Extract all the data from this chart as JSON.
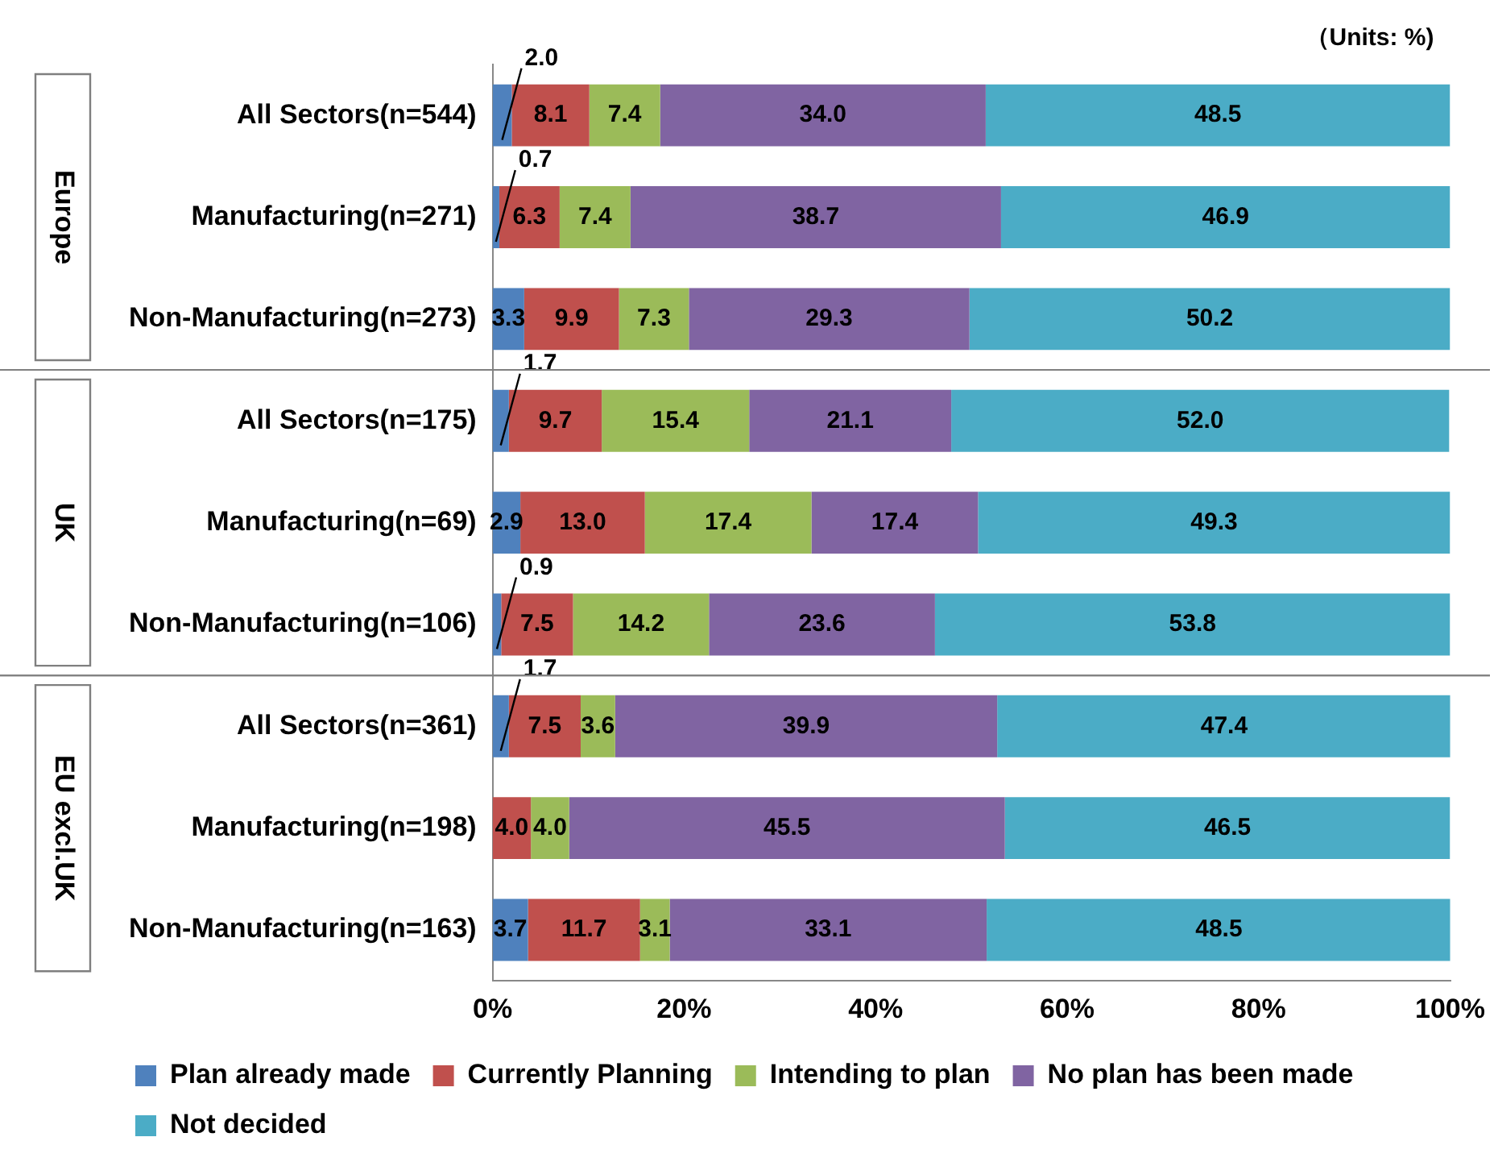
{
  "chart_data": {
    "type": "bar",
    "orientation": "horizontal",
    "stacked": true,
    "categories": [
      "All Sectors(n=544)",
      "Manufacturing(n=271)",
      "Non-Manufacturing(n=273)",
      "All Sectors(n=175)",
      "Manufacturing(n=69)",
      "Non-Manufacturing(n=106)",
      "All Sectors(n=361)",
      "Manufacturing(n=198)",
      "Non-Manufacturing(n=163)"
    ],
    "series": [
      {
        "name": "Plan already made",
        "color": "#4f81bd",
        "values": [
          2.0,
          0.7,
          3.3,
          1.7,
          2.9,
          0.9,
          1.7,
          0,
          3.7
        ],
        "value_labels": [
          "2.0",
          "0.7",
          "3.3",
          "1.7",
          "2.9",
          "0.9",
          "1.7",
          null,
          "3.7"
        ]
      },
      {
        "name": "Currently Planning",
        "color": "#c0504d",
        "values": [
          8.1,
          6.3,
          9.9,
          9.7,
          13.0,
          7.5,
          7.5,
          4.0,
          11.7
        ],
        "value_labels": [
          "8.1",
          "6.3",
          "9.9",
          "9.7",
          "13.0",
          "7.5",
          "7.5",
          "4.0",
          "11.7"
        ]
      },
      {
        "name": "Intending to plan",
        "color": "#9bbb59",
        "values": [
          7.4,
          7.4,
          7.3,
          15.4,
          17.4,
          14.2,
          3.6,
          4.0,
          3.1
        ],
        "value_labels": [
          "7.4",
          "7.4",
          "7.3",
          "15.4",
          "17.4",
          "14.2",
          "3.6",
          "4.0",
          "3.1"
        ]
      },
      {
        "name": "No plan has been made",
        "color": "#8064a2",
        "values": [
          34.0,
          38.7,
          29.3,
          21.1,
          17.4,
          23.6,
          39.9,
          45.5,
          33.1
        ],
        "value_labels": [
          "34.0",
          "38.7",
          "29.3",
          "21.1",
          "17.4",
          "23.6",
          "39.9",
          "45.5",
          "33.1"
        ]
      },
      {
        "name": "Not decided",
        "color": "#4bacc6",
        "values": [
          48.5,
          46.9,
          50.2,
          52.0,
          49.3,
          53.8,
          47.4,
          46.5,
          48.5
        ],
        "value_labels": [
          "48.5",
          "46.9",
          "50.2",
          "52.0",
          "49.3",
          "53.8",
          "47.4",
          "46.5",
          "48.5"
        ]
      }
    ],
    "xlim": [
      0,
      100
    ],
    "xticks": [
      {
        "value": 0,
        "label": "0%"
      },
      {
        "value": 20,
        "label": "20%"
      },
      {
        "value": 40,
        "label": "40%"
      },
      {
        "value": 60,
        "label": "60%"
      },
      {
        "value": 80,
        "label": "80%"
      },
      {
        "value": 100,
        "label": "100%"
      }
    ],
    "grid": false,
    "legend": "bottom",
    "annotations": [
      "（Units: %)",
      "Europe",
      "UK",
      "EU excl.UK"
    ]
  }
}
